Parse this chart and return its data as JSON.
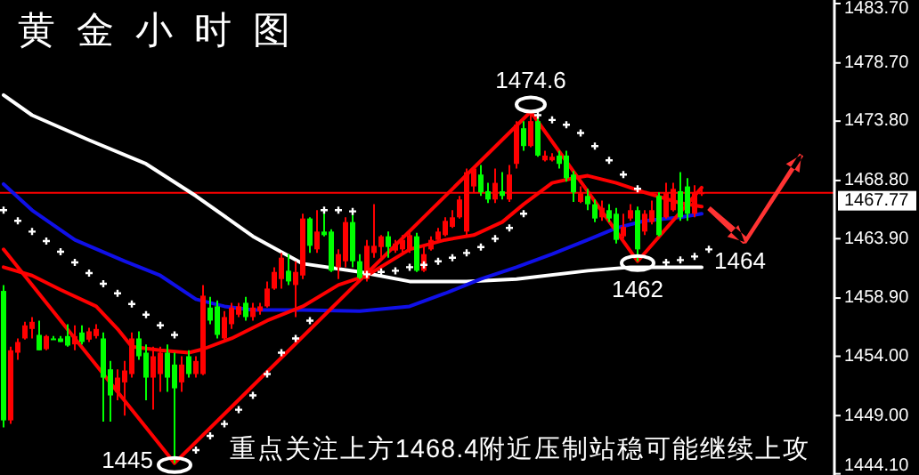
{
  "chart_data": {
    "type": "candlestick",
    "title": "黄金小时图",
    "categories": [
      null,
      null,
      null,
      null,
      null,
      null,
      null,
      null,
      null,
      null,
      null,
      null,
      null,
      null,
      null,
      null,
      null,
      null,
      null,
      null,
      null,
      null,
      null,
      null,
      null,
      null,
      null,
      null,
      null,
      null,
      null,
      null,
      null,
      null,
      null,
      null,
      null,
      null,
      null,
      null,
      null,
      null,
      null,
      null,
      null,
      null,
      null,
      null,
      null,
      null,
      null,
      null,
      null,
      null,
      null,
      null,
      null,
      null,
      null,
      null,
      null,
      null,
      null,
      null,
      null,
      null,
      null,
      null,
      null,
      null,
      null,
      null,
      null,
      null,
      null,
      null,
      null,
      null,
      null,
      null,
      null,
      null,
      null,
      null,
      null,
      null,
      null,
      null,
      null,
      null,
      null,
      null,
      null,
      null,
      null,
      null,
      null,
      null,
      null,
      null,
      null,
      null,
      null,
      null,
      null,
      null,
      null,
      null,
      null,
      null,
      null,
      null,
      null,
      null,
      null,
      null,
      null
    ],
    "ohlc": [
      [
        1459.5,
        1460.0,
        1448.0,
        1448.6
      ],
      [
        1448.6,
        1454.8,
        1448.3,
        1454.5
      ],
      [
        1454.3,
        1455.5,
        1453.7,
        1455.2
      ],
      [
        1455.5,
        1456.9,
        1455.4,
        1456.6
      ],
      [
        1456.3,
        1457.3,
        1455.5,
        1456.9
      ],
      [
        1455.8,
        1457.0,
        1454.5,
        1454.5
      ],
      [
        1454.6,
        1455.8,
        1454.5,
        1455.7
      ],
      [
        1455.5,
        1455.7,
        1455.4,
        1455.4
      ],
      [
        1455.5,
        1455.7,
        1455.2,
        1455.2
      ],
      [
        1455.7,
        1456.7,
        1454.8,
        1454.9
      ],
      [
        1455.0,
        1456.6,
        1454.5,
        1455.7
      ],
      [
        1456.0,
        1456.6,
        1455.0,
        1455.2
      ],
      [
        1455.4,
        1456.4,
        1455.2,
        1456.1
      ],
      [
        1455.7,
        1456.7,
        1455.5,
        1456.3
      ],
      [
        1455.5,
        1456.0,
        1448.5,
        1452.2
      ],
      [
        1452.9,
        1453.6,
        1448.5,
        1450.7
      ],
      [
        1451.0,
        1452.9,
        1450.3,
        1452.2
      ],
      [
        1451.8,
        1453.6,
        1449.0,
        1452.8
      ],
      [
        1452.5,
        1456.0,
        1452.2,
        1455.5
      ],
      [
        1455.5,
        1456.1,
        1453.7,
        1454.0
      ],
      [
        1454.3,
        1455.0,
        1450.3,
        1452.2
      ],
      [
        1452.2,
        1454.8,
        1449.5,
        1454.0
      ],
      [
        1452.5,
        1454.8,
        1451.0,
        1454.3
      ],
      [
        1454.3,
        1455.0,
        1451.0,
        1452.2
      ],
      [
        1453.3,
        1454.3,
        1445.0,
        1451.3
      ],
      [
        1451.8,
        1454.0,
        1451.0,
        1453.3
      ],
      [
        1454.0,
        1454.5,
        1452.2,
        1452.5
      ],
      [
        1452.5,
        1454.0,
        1452.2,
        1453.6
      ],
      [
        1452.5,
        1460.0,
        1452.4,
        1459.1
      ],
      [
        1458.1,
        1459.0,
        1456.7,
        1457.0
      ],
      [
        1458.2,
        1458.7,
        1455.5,
        1455.8
      ],
      [
        1455.5,
        1457.8,
        1455.2,
        1457.3
      ],
      [
        1456.7,
        1458.5,
        1456.3,
        1458.1
      ],
      [
        1457.5,
        1458.5,
        1457.3,
        1458.2
      ],
      [
        1458.5,
        1459.0,
        1457.0,
        1457.3
      ],
      [
        1457.3,
        1458.5,
        1457.0,
        1458.1
      ],
      [
        1457.8,
        1458.5,
        1457.5,
        1458.2
      ],
      [
        1458.2,
        1460.3,
        1458.1,
        1459.7
      ],
      [
        1459.7,
        1461.5,
        1459.6,
        1461.1
      ],
      [
        1460.5,
        1462.7,
        1459.7,
        1462.3
      ],
      [
        1461.2,
        1462.6,
        1460.0,
        1460.3
      ],
      [
        1460.0,
        1462.0,
        1457.3,
        1461.1
      ],
      [
        1460.8,
        1466.0,
        1460.5,
        1465.6
      ],
      [
        1465.6,
        1465.7,
        1462.7,
        1463.3
      ],
      [
        1463.0,
        1466.3,
        1462.7,
        1464.5
      ],
      [
        1464.5,
        1466.3,
        1464.1,
        1464.2
      ],
      [
        1464.5,
        1464.7,
        1461.1,
        1461.2
      ],
      [
        1461.5,
        1463.0,
        1460.5,
        1462.6
      ],
      [
        1462.0,
        1465.7,
        1461.5,
        1465.3
      ],
      [
        1465.3,
        1466.0,
        1461.5,
        1462.0
      ],
      [
        1462.0,
        1462.6,
        1460.5,
        1460.6
      ],
      [
        1460.5,
        1463.8,
        1460.3,
        1463.3
      ],
      [
        1462.7,
        1466.8,
        1462.3,
        1463.3
      ],
      [
        1463.2,
        1464.2,
        1462.3,
        1464.1
      ],
      [
        1464.1,
        1464.5,
        1462.3,
        1463.2
      ],
      [
        1462.9,
        1463.8,
        1462.7,
        1463.5
      ],
      [
        1463.0,
        1464.2,
        1462.7,
        1463.8
      ],
      [
        1463.0,
        1464.5,
        1462.7,
        1464.2
      ],
      [
        1464.1,
        1464.4,
        1461.1,
        1461.2
      ],
      [
        1461.2,
        1463.3,
        1461.1,
        1462.6
      ],
      [
        1463.0,
        1464.1,
        1462.9,
        1463.8
      ],
      [
        1463.8,
        1464.8,
        1463.6,
        1464.5
      ],
      [
        1464.2,
        1465.7,
        1464.1,
        1465.4
      ],
      [
        1464.9,
        1466.3,
        1464.8,
        1465.7
      ],
      [
        1465.7,
        1467.5,
        1465.6,
        1467.2
      ],
      [
        1464.5,
        1469.8,
        1464.2,
        1469.5
      ],
      [
        1468.3,
        1469.9,
        1467.8,
        1469.8
      ],
      [
        1469.3,
        1470.1,
        1467.5,
        1467.8
      ],
      [
        1467.9,
        1468.6,
        1466.9,
        1467.2
      ],
      [
        1467.2,
        1469.8,
        1466.9,
        1468.6
      ],
      [
        1467.9,
        1469.5,
        1467.2,
        1467.5
      ],
      [
        1467.2,
        1470.1,
        1467.0,
        1469.3
      ],
      [
        1470.2,
        1473.8,
        1469.8,
        1473.5
      ],
      [
        1473.2,
        1473.8,
        1471.3,
        1471.7
      ],
      [
        1471.7,
        1474.6,
        1471.6,
        1473.8
      ],
      [
        1473.8,
        1474.1,
        1470.8,
        1470.9
      ],
      [
        1470.5,
        1471.3,
        1470.4,
        1470.9
      ],
      [
        1470.5,
        1471.1,
        1470.4,
        1470.8
      ],
      [
        1470.9,
        1471.3,
        1469.8,
        1470.2
      ],
      [
        1470.9,
        1471.3,
        1468.7,
        1469.0
      ],
      [
        1469.3,
        1469.6,
        1467.0,
        1467.8
      ],
      [
        1467.0,
        1468.3,
        1466.9,
        1467.8
      ],
      [
        1467.5,
        1468.1,
        1466.3,
        1466.8
      ],
      [
        1466.8,
        1467.2,
        1465.3,
        1465.6
      ],
      [
        1465.7,
        1467.1,
        1465.4,
        1466.5
      ],
      [
        1466.3,
        1466.8,
        1465.3,
        1465.6
      ],
      [
        1466.0,
        1466.5,
        1463.5,
        1463.8
      ],
      [
        1464.1,
        1466.0,
        1463.9,
        1464.9
      ],
      [
        1465.6,
        1466.8,
        1465.4,
        1466.3
      ],
      [
        1466.3,
        1466.6,
        1462.0,
        1463.0
      ],
      [
        1464.5,
        1466.3,
        1464.2,
        1466.0
      ],
      [
        1465.3,
        1467.1,
        1465.1,
        1466.3
      ],
      [
        1467.5,
        1467.8,
        1464.1,
        1464.2
      ],
      [
        1465.7,
        1468.6,
        1465.6,
        1467.8
      ],
      [
        1466.3,
        1468.6,
        1466.2,
        1468.1
      ],
      [
        1467.9,
        1469.5,
        1465.4,
        1465.7
      ],
      [
        1468.3,
        1469.0,
        1465.4,
        1466.0
      ],
      [
        1466.0,
        1468.4,
        1465.7,
        1467.8
      ],
      [
        1467.7,
        1468.1,
        1467.5,
        1467.8
      ],
      null,
      null,
      null,
      null,
      null,
      null,
      null,
      null,
      null,
      null,
      null,
      null,
      null,
      null,
      null,
      null,
      null,
      null
    ],
    "colors": [
      "#00ff00",
      "#ff0000",
      "#ff0000",
      "#ff0000",
      "#ff0000",
      "#00ff00",
      "#ff0000",
      "#00ff00",
      "#00ff00",
      "#00ff00",
      "#ff0000",
      "#00ff00",
      "#ff0000",
      "#ff0000",
      "#00ff00",
      "#00ff00",
      "#ff0000",
      "#ff0000",
      "#ff0000",
      "#00ff00",
      "#00ff00",
      "#ff0000",
      "#ff0000",
      "#00ff00",
      "#00ff00",
      "#ff0000",
      "#00ff00",
      "#ff0000",
      "#ff0000",
      "#00ff00",
      "#00ff00",
      "#ff0000",
      "#ff0000",
      "#ff0000",
      "#00ff00",
      "#ff0000",
      "#ff0000",
      "#ff0000",
      "#ff0000",
      "#ff0000",
      "#00ff00",
      "#ff0000",
      "#ff0000",
      "#00ff00",
      "#ff0000",
      "#00ff00",
      "#00ff00",
      "#ff0000",
      "#ff0000",
      "#00ff00",
      "#00ff00",
      "#ff0000",
      "#ff0000",
      "#ff0000",
      "#00ff00",
      "#ff0000",
      "#ff0000",
      "#ff0000",
      "#00ff00",
      "#ff0000",
      "#ff0000",
      "#ff0000",
      "#ff0000",
      "#ff0000",
      "#ff0000",
      "#ff0000",
      "#ff0000",
      "#00ff00",
      "#00ff00",
      "#ff0000",
      "#00ff00",
      "#ff0000",
      "#ff0000",
      "#00ff00",
      "#ff0000",
      "#00ff00",
      "#ff0000",
      "#ff0000",
      "#00ff00",
      "#00ff00",
      "#00ff00",
      "#ff0000",
      "#00ff00",
      "#00ff00",
      "#ff0000",
      "#00ff00",
      "#00ff00",
      "#ff0000",
      "#ff0000",
      "#00ff00",
      "#ff0000",
      "#ff0000",
      "#00ff00",
      "#ff0000",
      "#ff0000",
      "#00ff00",
      "#00ff00",
      "#ff0000",
      "#ff0000",
      null,
      null,
      null,
      null,
      null,
      null,
      null,
      null,
      null,
      null,
      null,
      null,
      null,
      null,
      null,
      null,
      null,
      null
    ],
    "series": [
      {
        "type": "line",
        "color": "#ffffff",
        "values": [
          1476.0,
          null,
          null,
          null,
          1474.3,
          null,
          null,
          null,
          null,
          null,
          null,
          null,
          1472.2,
          null,
          null,
          null,
          null,
          null,
          null,
          null,
          1470.2,
          null,
          null,
          null,
          null,
          null,
          null,
          1467.5,
          null,
          null,
          null,
          null,
          null,
          null,
          null,
          1464.1,
          null,
          null,
          null,
          null,
          null,
          null,
          1461.8,
          null,
          null,
          null,
          null,
          null,
          null,
          null,
          1461.1,
          null,
          null,
          null,
          null,
          null,
          null,
          1460.3,
          null,
          null,
          null,
          null,
          null,
          null,
          null,
          1460.3,
          null,
          null,
          null,
          null,
          null,
          null,
          1460.5,
          null,
          null,
          null,
          null,
          null,
          null,
          null,
          null,
          null,
          1461.2,
          null,
          null,
          null,
          null,
          null,
          1461.5,
          null,
          null,
          null,
          null,
          null,
          null,
          null,
          null,
          null,
          1461.5,
          null,
          null,
          null,
          null,
          null,
          null,
          null,
          null,
          null,
          null,
          null,
          null,
          null,
          null,
          null,
          null,
          null,
          null
        ]
      },
      {
        "type": "line",
        "color": "#1010e8",
        "values": [
          1468.5,
          null,
          null,
          null,
          1466.3,
          null,
          null,
          null,
          null,
          null,
          1463.8,
          null,
          null,
          null,
          null,
          null,
          null,
          1462.0,
          null,
          null,
          null,
          null,
          1460.8,
          null,
          null,
          null,
          null,
          1458.8,
          null,
          null,
          null,
          1458.2,
          null,
          null,
          null,
          1457.9,
          null,
          null,
          null,
          null,
          null,
          null,
          1457.9,
          null,
          null,
          null,
          null,
          null,
          null,
          null,
          1457.8,
          null,
          null,
          null,
          null,
          null,
          null,
          1458.2,
          null,
          null,
          null,
          null,
          1459.3,
          null,
          null,
          null,
          null,
          1460.5,
          null,
          null,
          null,
          null,
          1461.5,
          null,
          null,
          null,
          null,
          1462.6,
          null,
          null,
          null,
          null,
          1463.8,
          null,
          null,
          null,
          1464.8,
          null,
          null,
          null,
          1465.4,
          null,
          null,
          null,
          null,
          1465.7,
          null,
          null,
          1466.0,
          null,
          null,
          null,
          null,
          null,
          null,
          null,
          null,
          null,
          null,
          null,
          null,
          null,
          null,
          null,
          null,
          null,
          null
        ]
      },
      {
        "type": "line",
        "color": "#ff0000",
        "values": [
          1461.5,
          null,
          null,
          null,
          1460.8,
          null,
          null,
          null,
          1459.6,
          null,
          null,
          null,
          null,
          1458.2,
          null,
          null,
          1456.3,
          null,
          1454.8,
          null,
          null,
          null,
          1454.5,
          null,
          null,
          null,
          1454.3,
          null,
          1454.6,
          null,
          null,
          null,
          1455.5,
          null,
          null,
          null,
          null,
          1457.0,
          null,
          null,
          null,
          null,
          1458.2,
          null,
          null,
          null,
          null,
          1460.0,
          null,
          null,
          null,
          1460.8,
          null,
          null,
          null,
          null,
          null,
          1463.0,
          null,
          null,
          null,
          null,
          1463.8,
          null,
          null,
          null,
          1464.2,
          null,
          null,
          null,
          1465.3,
          null,
          null,
          1466.8,
          null,
          null,
          null,
          1468.6,
          null,
          null,
          1469.0,
          null,
          1469.2,
          null,
          null,
          null,
          1468.6,
          null,
          null,
          null,
          1467.8,
          null,
          null,
          null,
          null,
          1466.9,
          null,
          null,
          1466.6,
          null,
          null,
          null,
          null,
          null,
          null,
          null,
          null,
          null,
          null,
          null,
          null,
          null,
          null,
          null,
          null,
          null,
          null
        ]
      },
      {
        "type": "scatter",
        "color": "#ffffff",
        "marker": "cross",
        "values": [
          1466.3,
          null,
          1465.4,
          null,
          1464.5,
          null,
          1463.7,
          null,
          1462.8,
          null,
          1461.9,
          null,
          1461.0,
          null,
          1460.1,
          null,
          1459.3,
          null,
          1458.4,
          null,
          1457.5,
          null,
          1456.6,
          null,
          1455.8,
          null,
          null,
          1446.1,
          null,
          1447.3,
          null,
          1448.3,
          null,
          1449.5,
          null,
          1450.7,
          null,
          1452.5,
          null,
          1454.3,
          null,
          1455.5,
          null,
          1457.0,
          null,
          1466.3,
          null,
          1466.3,
          null,
          1466.2,
          null,
          1460.9,
          null,
          1461.1,
          null,
          1461.2,
          null,
          1461.5,
          null,
          1461.7,
          null,
          1462.0,
          null,
          1462.3,
          null,
          1462.7,
          null,
          1463.2,
          null,
          1463.9,
          null,
          1464.8,
          null,
          1466.0,
          null,
          1474.3,
          null,
          1473.9,
          null,
          1473.5,
          null,
          1472.8,
          null,
          1471.7,
          null,
          1470.5,
          null,
          1469.3,
          null,
          1468.1,
          null,
          null,
          null,
          1461.9,
          null,
          1462.1,
          null,
          1462.4,
          null,
          1463.0,
          null,
          null,
          null,
          null,
          null,
          null,
          null,
          null,
          null,
          null,
          null,
          null,
          null,
          null,
          null,
          null,
          null
        ]
      },
      {
        "type": "line",
        "color": "#ff0000",
        "values": [
          1463.0,
          null,
          null,
          null,
          null,
          null,
          null,
          null,
          null,
          null,
          null,
          null,
          null,
          null,
          null,
          null,
          null,
          null,
          null,
          null,
          null,
          null,
          null,
          null,
          1445.0,
          null,
          null,
          null,
          null,
          null,
          null,
          null,
          null,
          null,
          null,
          null,
          null,
          null,
          null,
          null,
          null,
          null,
          null,
          null,
          null,
          null,
          null,
          null,
          null,
          null,
          null,
          null,
          null,
          null,
          null,
          null,
          null,
          null,
          null,
          null,
          null,
          null,
          null,
          null,
          null,
          null,
          null,
          null,
          null,
          null,
          null,
          null,
          null,
          null,
          1474.6,
          null,
          null,
          null,
          null,
          null,
          null,
          null,
          null,
          null,
          null,
          null,
          null,
          null,
          null,
          1462.0,
          null,
          null,
          null,
          null,
          null,
          null,
          null,
          null,
          1468.2,
          null,
          null,
          null,
          null,
          null,
          null,
          null,
          null,
          null,
          null,
          null,
          null,
          null,
          null,
          null,
          null,
          null,
          null
        ]
      }
    ],
    "ylim": [
      1444.0,
      1484.0
    ],
    "yticks": [
      {
        "value": 1444.1,
        "label": "1444.10"
      },
      {
        "value": 1449.0,
        "label": "1449.00"
      },
      {
        "value": 1454.0,
        "label": "1454.00"
      },
      {
        "value": 1458.9,
        "label": "1458.90"
      },
      {
        "value": 1463.9,
        "label": "1463.90"
      },
      {
        "value": 1468.8,
        "label": "1468.80"
      },
      {
        "value": 1473.8,
        "label": "1473.80"
      },
      {
        "value": 1478.7,
        "label": "1478.70"
      },
      {
        "value": 1483.7,
        "label": "1483.70"
      }
    ],
    "tick_labels": "y",
    "ref_lines": [
      {
        "axis": "y",
        "value": 1467.77,
        "label": "1467.77",
        "color": "#ff0000"
      }
    ],
    "annotations": [
      "1474.6",
      "1445",
      "1462",
      "1464",
      "重点关注上方1468.4附近压制站稳可能继续上攻"
    ]
  }
}
